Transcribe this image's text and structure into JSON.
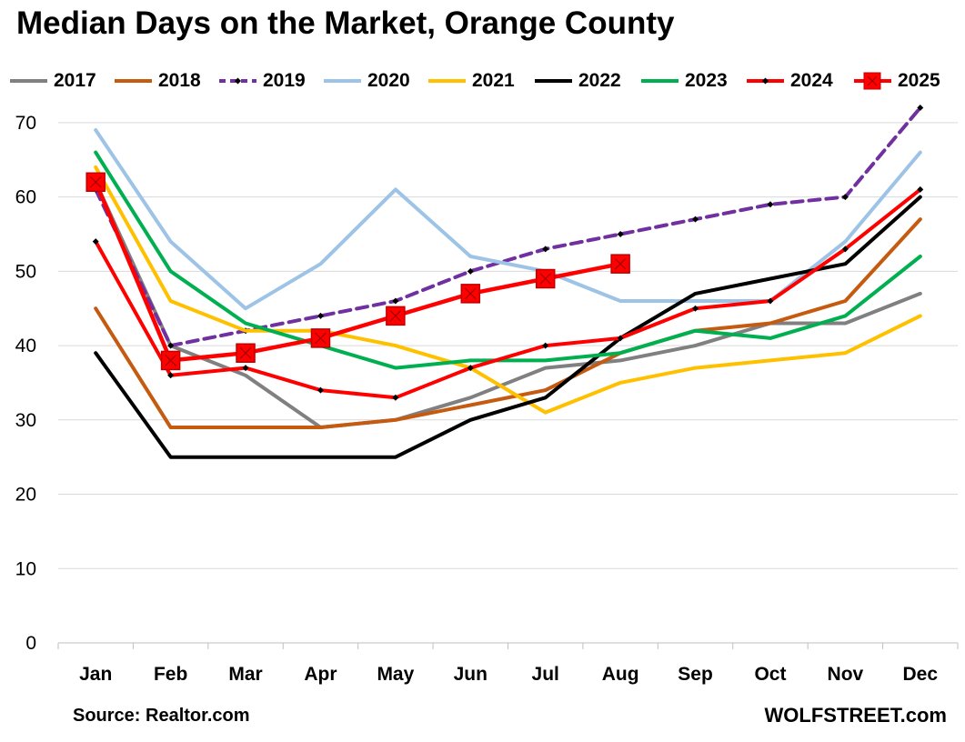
{
  "chart_data": {
    "type": "line",
    "title": "Median Days on the Market, Orange County",
    "categories": [
      "Jan",
      "Feb",
      "Mar",
      "Apr",
      "May",
      "Jun",
      "Jul",
      "Aug",
      "Sep",
      "Oct",
      "Nov",
      "Dec"
    ],
    "ylim": [
      0,
      75
    ],
    "yticks": [
      0,
      10,
      20,
      30,
      40,
      50,
      60,
      70
    ],
    "grid": "horizontal",
    "legend_position": "top",
    "series": [
      {
        "name": "2017",
        "color": "#808080",
        "dash": "solid",
        "marker": "none",
        "values": [
          62,
          40,
          36,
          29,
          30,
          33,
          37,
          38,
          40,
          43,
          43,
          47
        ]
      },
      {
        "name": "2018",
        "color": "#C55A11",
        "dash": "solid",
        "marker": "none",
        "values": [
          45,
          29,
          29,
          29,
          30,
          32,
          34,
          39,
          42,
          43,
          46,
          57
        ]
      },
      {
        "name": "2019",
        "color": "#7030A0",
        "dash": "dashed",
        "marker": "diamond",
        "values": [
          61,
          40,
          42,
          44,
          46,
          50,
          53,
          55,
          57,
          59,
          60,
          72
        ]
      },
      {
        "name": "2020",
        "color": "#9DC3E6",
        "dash": "solid",
        "marker": "none",
        "values": [
          69,
          54,
          45,
          51,
          61,
          52,
          50,
          46,
          46,
          46,
          54,
          66
        ]
      },
      {
        "name": "2021",
        "color": "#FFC000",
        "dash": "solid",
        "marker": "none",
        "values": [
          64,
          46,
          42,
          42,
          40,
          37,
          31,
          35,
          37,
          38,
          39,
          44
        ]
      },
      {
        "name": "2022",
        "color": "#000000",
        "dash": "solid",
        "marker": "none",
        "values": [
          39,
          25,
          25,
          25,
          25,
          30,
          33,
          41,
          47,
          49,
          51,
          60
        ]
      },
      {
        "name": "2023",
        "color": "#00B050",
        "dash": "solid",
        "marker": "none",
        "values": [
          66,
          50,
          43,
          40,
          37,
          38,
          38,
          39,
          42,
          41,
          44,
          52
        ]
      },
      {
        "name": "2024",
        "color": "#FF0000",
        "dash": "solid",
        "marker": "diamond",
        "values": [
          54,
          36,
          37,
          34,
          33,
          37,
          40,
          41,
          45,
          46,
          53,
          61
        ]
      },
      {
        "name": "2025",
        "color": "#FF0000",
        "dash": "solid",
        "marker": "square",
        "values": [
          62,
          38,
          39,
          41,
          44,
          47,
          49,
          51,
          null,
          null,
          null,
          null
        ]
      }
    ]
  },
  "footer": {
    "source": "Source: Realtor.com",
    "brand": "WOLFSTREET.com"
  }
}
